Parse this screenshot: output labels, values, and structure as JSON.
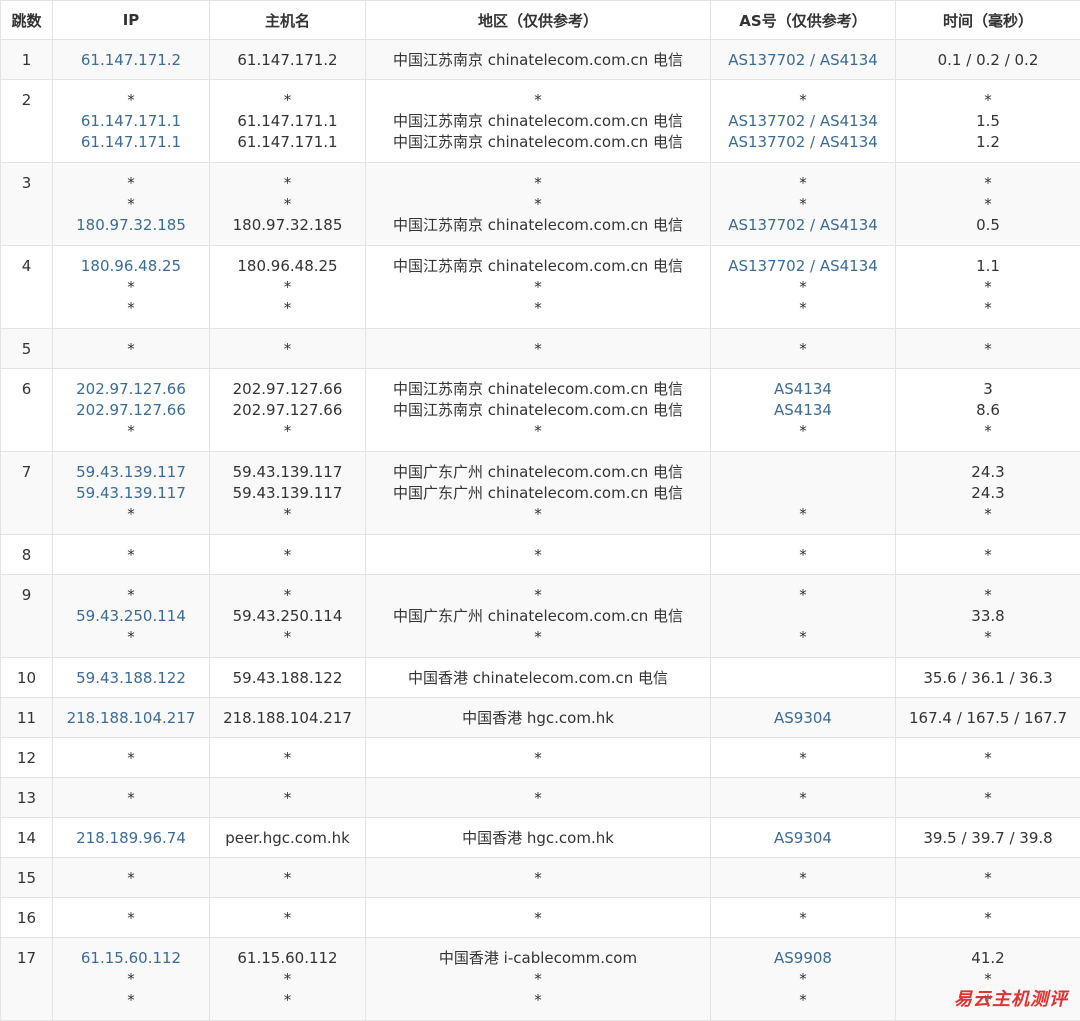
{
  "headers": [
    "跳数",
    "IP",
    "主机名",
    "地区（仅供参考）",
    "AS号（仅供参考）",
    "时间（毫秒）"
  ],
  "rows": [
    {
      "hop": "1",
      "ip": [
        "61.147.171.2"
      ],
      "host": [
        "61.147.171.2"
      ],
      "region": [
        "中国江苏南京 chinatelecom.com.cn 电信"
      ],
      "as": [
        "AS137702 / AS4134"
      ],
      "time": [
        "0.1 / 0.2 / 0.2"
      ]
    },
    {
      "hop": "2",
      "ip": [
        "*",
        "61.147.171.1",
        "61.147.171.1"
      ],
      "host": [
        "*",
        "61.147.171.1",
        "61.147.171.1"
      ],
      "region": [
        "*",
        "中国江苏南京 chinatelecom.com.cn 电信",
        "中国江苏南京 chinatelecom.com.cn 电信"
      ],
      "as": [
        "*",
        "AS137702 / AS4134",
        "AS137702 / AS4134"
      ],
      "time": [
        "*",
        "1.5",
        "1.2"
      ]
    },
    {
      "hop": "3",
      "ip": [
        "*",
        "*",
        "180.97.32.185"
      ],
      "host": [
        "*",
        "*",
        "180.97.32.185"
      ],
      "region": [
        "*",
        "*",
        "中国江苏南京 chinatelecom.com.cn 电信"
      ],
      "as": [
        "*",
        "*",
        "AS137702 / AS4134"
      ],
      "time": [
        "*",
        "*",
        "0.5"
      ]
    },
    {
      "hop": "4",
      "ip": [
        "180.96.48.25",
        "*",
        "*"
      ],
      "host": [
        "180.96.48.25",
        "*",
        "*"
      ],
      "region": [
        "中国江苏南京 chinatelecom.com.cn 电信",
        "*",
        "*"
      ],
      "as": [
        "AS137702 / AS4134",
        "*",
        "*"
      ],
      "time": [
        "1.1",
        "*",
        "*"
      ]
    },
    {
      "hop": "5",
      "ip": [
        "*"
      ],
      "host": [
        "*"
      ],
      "region": [
        "*"
      ],
      "as": [
        "*"
      ],
      "time": [
        "*"
      ]
    },
    {
      "hop": "6",
      "ip": [
        "202.97.127.66",
        "202.97.127.66",
        "*"
      ],
      "host": [
        "202.97.127.66",
        "202.97.127.66",
        "*"
      ],
      "region": [
        "中国江苏南京 chinatelecom.com.cn 电信",
        "中国江苏南京 chinatelecom.com.cn 电信",
        "*"
      ],
      "as": [
        "AS4134",
        "AS4134",
        "*"
      ],
      "time": [
        "3",
        "8.6",
        "*"
      ]
    },
    {
      "hop": "7",
      "ip": [
        "59.43.139.117",
        "59.43.139.117",
        "*"
      ],
      "host": [
        "59.43.139.117",
        "59.43.139.117",
        "*"
      ],
      "region": [
        "中国广东广州 chinatelecom.com.cn 电信",
        "中国广东广州 chinatelecom.com.cn 电信",
        "*"
      ],
      "as": [
        "",
        "",
        "*"
      ],
      "time": [
        "24.3",
        "24.3",
        "*"
      ]
    },
    {
      "hop": "8",
      "ip": [
        "*"
      ],
      "host": [
        "*"
      ],
      "region": [
        "*"
      ],
      "as": [
        "*"
      ],
      "time": [
        "*"
      ]
    },
    {
      "hop": "9",
      "ip": [
        "*",
        "59.43.250.114",
        "*"
      ],
      "host": [
        "*",
        "59.43.250.114",
        "*"
      ],
      "region": [
        "*",
        "中国广东广州 chinatelecom.com.cn 电信",
        "*"
      ],
      "as": [
        "*",
        "",
        "*"
      ],
      "time": [
        "*",
        "33.8",
        "*"
      ]
    },
    {
      "hop": "10",
      "ip": [
        "59.43.188.122"
      ],
      "host": [
        "59.43.188.122"
      ],
      "region": [
        "中国香港 chinatelecom.com.cn 电信"
      ],
      "as": [
        ""
      ],
      "time": [
        "35.6 / 36.1 / 36.3"
      ]
    },
    {
      "hop": "11",
      "ip": [
        "218.188.104.217"
      ],
      "host": [
        "218.188.104.217"
      ],
      "region": [
        "中国香港 hgc.com.hk"
      ],
      "as": [
        "AS9304"
      ],
      "time": [
        "167.4 / 167.5 / 167.7"
      ]
    },
    {
      "hop": "12",
      "ip": [
        "*"
      ],
      "host": [
        "*"
      ],
      "region": [
        "*"
      ],
      "as": [
        "*"
      ],
      "time": [
        "*"
      ]
    },
    {
      "hop": "13",
      "ip": [
        "*"
      ],
      "host": [
        "*"
      ],
      "region": [
        "*"
      ],
      "as": [
        "*"
      ],
      "time": [
        "*"
      ]
    },
    {
      "hop": "14",
      "ip": [
        "218.189.96.74"
      ],
      "host": [
        "peer.hgc.com.hk"
      ],
      "region": [
        "中国香港 hgc.com.hk"
      ],
      "as": [
        "AS9304"
      ],
      "time": [
        "39.5 / 39.7 / 39.8"
      ]
    },
    {
      "hop": "15",
      "ip": [
        "*"
      ],
      "host": [
        "*"
      ],
      "region": [
        "*"
      ],
      "as": [
        "*"
      ],
      "time": [
        "*"
      ]
    },
    {
      "hop": "16",
      "ip": [
        "*"
      ],
      "host": [
        "*"
      ],
      "region": [
        "*"
      ],
      "as": [
        "*"
      ],
      "time": [
        "*"
      ]
    },
    {
      "hop": "17",
      "ip": [
        "61.15.60.112",
        "*",
        "*"
      ],
      "host": [
        "61.15.60.112",
        "*",
        "*"
      ],
      "region": [
        "中国香港 i-cablecomm.com",
        "*",
        "*"
      ],
      "as": [
        "AS9908",
        "*",
        "*"
      ],
      "time": [
        "41.2",
        "*",
        "*"
      ]
    }
  ],
  "watermark": "易云主机测评",
  "colors": {
    "link": "#3b6b96",
    "text": "#333333",
    "stripe": "#f9f9f9",
    "border": "#e3e3e3",
    "watermark": "#e0332f"
  }
}
